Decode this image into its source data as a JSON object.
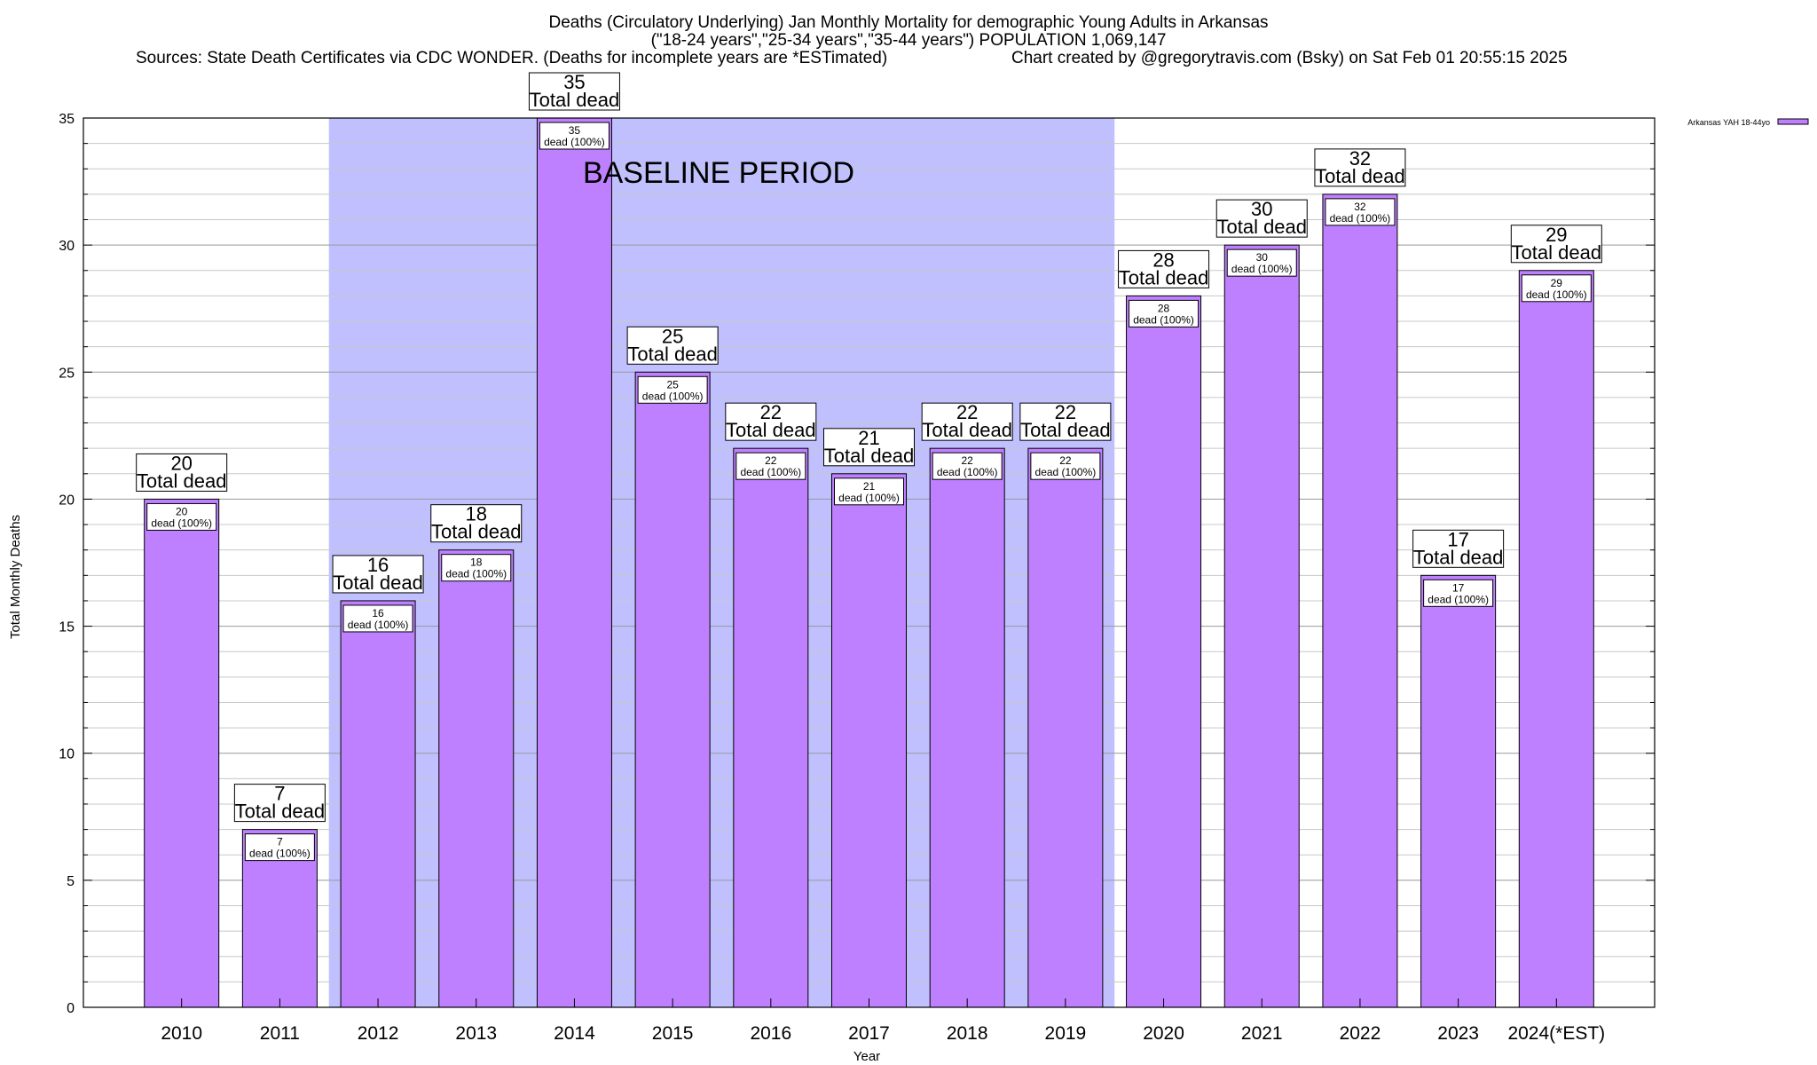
{
  "chart_data": {
    "type": "bar",
    "title": "Deaths (Circulatory Underlying) Jan Monthly Mortality for demographic Young Adults in Arkansas",
    "subtitle": "(\"18-24 years\",\"25-34 years\",\"35-44 years\") POPULATION 1,069,147",
    "sources": "Sources: State Death Certificates via CDC WONDER. (Deaths for incomplete years are *ESTimated)",
    "credit": "Chart created by @gregorytravis.com (Bsky) on Sat Feb 01 20:55:15 2025",
    "xlabel": "Year",
    "ylabel": "Total Monthly Deaths",
    "ylim": [
      0,
      35
    ],
    "yticks": [
      0,
      5,
      10,
      15,
      20,
      25,
      30,
      35
    ],
    "grid": true,
    "categories": [
      "2010",
      "2011",
      "2012",
      "2013",
      "2014",
      "2015",
      "2016",
      "2017",
      "2018",
      "2019",
      "2020",
      "2021",
      "2022",
      "2023",
      "2024(*EST)"
    ],
    "series": [
      {
        "name": "Arkansas YAH 18-44yo",
        "color": "#bf80ff",
        "values": [
          20,
          7,
          16,
          18,
          35,
          25,
          22,
          21,
          22,
          22,
          28,
          30,
          32,
          17,
          29
        ]
      }
    ],
    "top_labels": [
      "20",
      "7",
      "16",
      "18",
      "35",
      "25",
      "22",
      "21",
      "22",
      "22",
      "28",
      "30",
      "32",
      "17",
      "29"
    ],
    "top_label_suffix": "Total dead",
    "inner_labels": [
      "20",
      "7",
      "16",
      "18",
      "35",
      "25",
      "22",
      "21",
      "22",
      "22",
      "28",
      "30",
      "32",
      "17",
      "29"
    ],
    "inner_label_suffix": "dead (100%)",
    "baseline_period": {
      "label": "BASELINE PERIOD",
      "start": "2012",
      "end": "2019",
      "color": "#c0c0ff"
    },
    "legend_position": "top-right"
  }
}
